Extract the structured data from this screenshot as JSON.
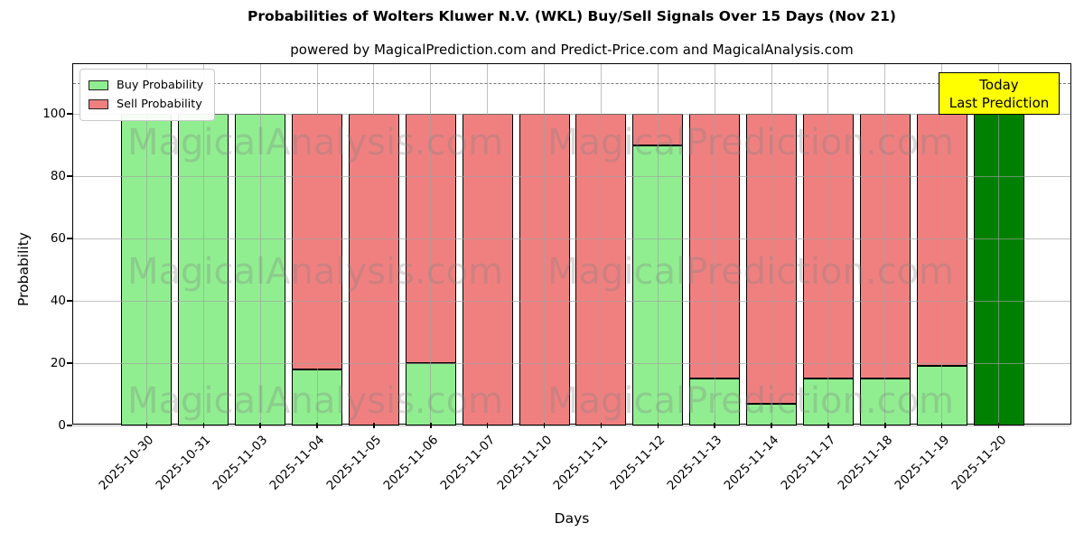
{
  "title": "Probabilities of Wolters Kluwer N.V. (WKL) Buy/Sell Signals Over 15 Days (Nov 21)",
  "subtitle": "powered by MagicalPrediction.com and Predict-Price.com and MagicalAnalysis.com",
  "legend": {
    "items": [
      {
        "label": "Buy Probability",
        "color": "#90EE90"
      },
      {
        "label": "Sell Probability",
        "color": "#F08080"
      }
    ]
  },
  "annotation": {
    "line1": "Today",
    "line2": "Last Prediction",
    "bg": "#FFFF00"
  },
  "x_axis": {
    "label": "Days"
  },
  "y_axis": {
    "label": "Probability",
    "ticks": [
      0,
      20,
      40,
      60,
      80,
      100
    ]
  },
  "watermarks": {
    "left": "MagicalAnalysis.com",
    "right": "MagicalPrediction.com"
  },
  "chart_data": {
    "type": "bar",
    "stacked": true,
    "title": "Probabilities of Wolters Kluwer N.V. (WKL) Buy/Sell Signals Over 15 Days (Nov 21)",
    "xlabel": "Days",
    "ylabel": "Probability",
    "ylim": [
      0,
      116
    ],
    "grid": true,
    "legend_position": "upper left",
    "dashed_line_y": 110,
    "categories": [
      "2025-10-30",
      "2025-10-31",
      "2025-11-03",
      "2025-11-04",
      "2025-11-05",
      "2025-11-06",
      "2025-11-07",
      "2025-11-10",
      "2025-11-11",
      "2025-11-12",
      "2025-11-13",
      "2025-11-14",
      "2025-11-17",
      "2025-11-18",
      "2025-11-19",
      "2025-11-20"
    ],
    "series": [
      {
        "name": "Buy Probability",
        "color": "#90EE90",
        "values": [
          100,
          100,
          100,
          18,
          0,
          20,
          0,
          0,
          0,
          90,
          15,
          7,
          15,
          15,
          19,
          100
        ]
      },
      {
        "name": "Sell Probability",
        "color": "#F08080",
        "values": [
          0,
          0,
          0,
          82,
          100,
          80,
          100,
          100,
          100,
          10,
          85,
          93,
          85,
          85,
          81,
          0
        ]
      }
    ],
    "last_bar": {
      "index": 15,
      "color": "#008000",
      "note": "Today / Last Prediction"
    }
  }
}
